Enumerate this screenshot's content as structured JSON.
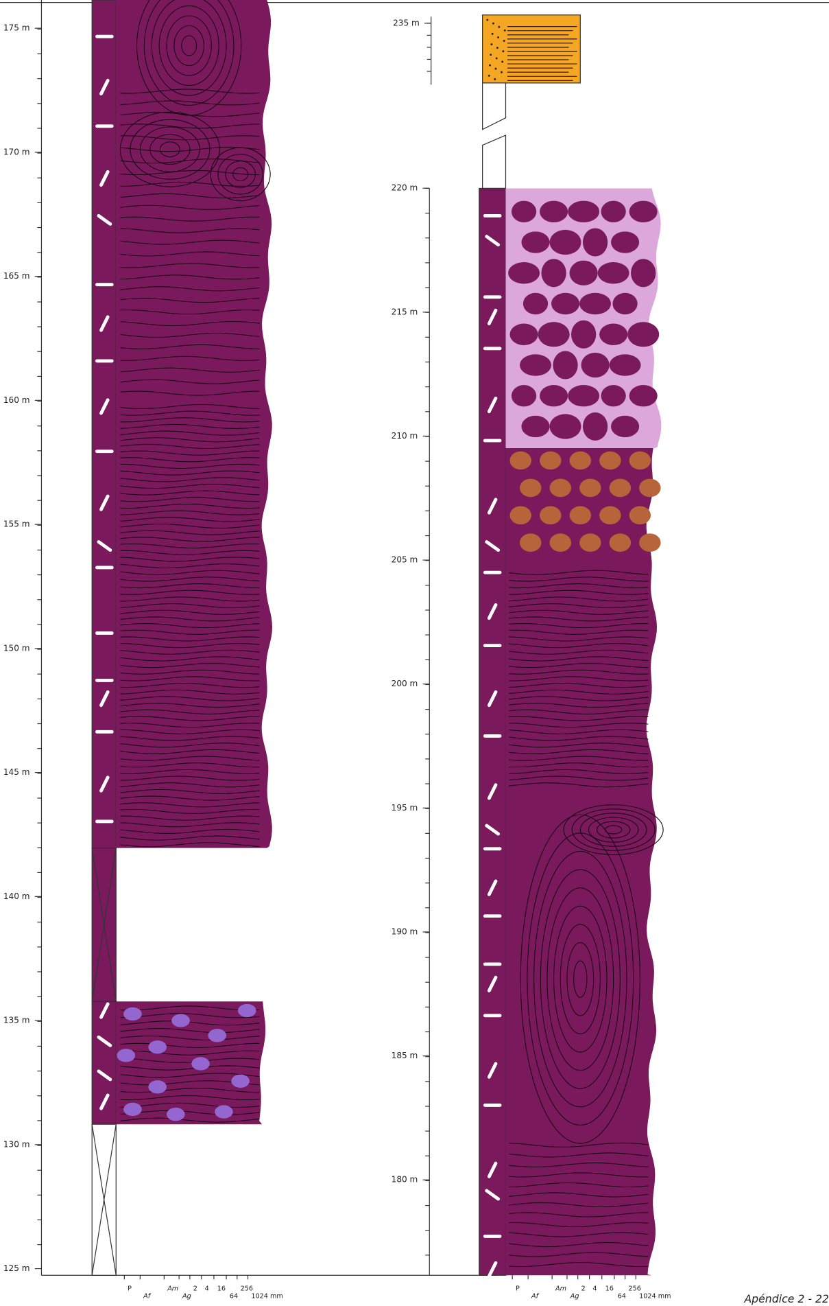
{
  "left_log": {
    "depth_labels": [
      "125 m",
      "130 m",
      "135 m",
      "140 m",
      "145 m",
      "150 m",
      "155 m",
      "160 m",
      "165 m",
      "170 m",
      "175 m"
    ]
  },
  "right_log": {
    "depth_labels": [
      "180 m",
      "185 m",
      "190 m",
      "195 m",
      "200 m",
      "205 m",
      "210 m",
      "215 m",
      "220 m"
    ],
    "top_label": "235 m"
  },
  "grain_scale": [
    "P",
    "Af",
    "Am",
    "Ag",
    "2",
    "4",
    "16",
    "64",
    "256",
    "1024 mm"
  ],
  "footer": "Apéndice 2 - 22"
}
